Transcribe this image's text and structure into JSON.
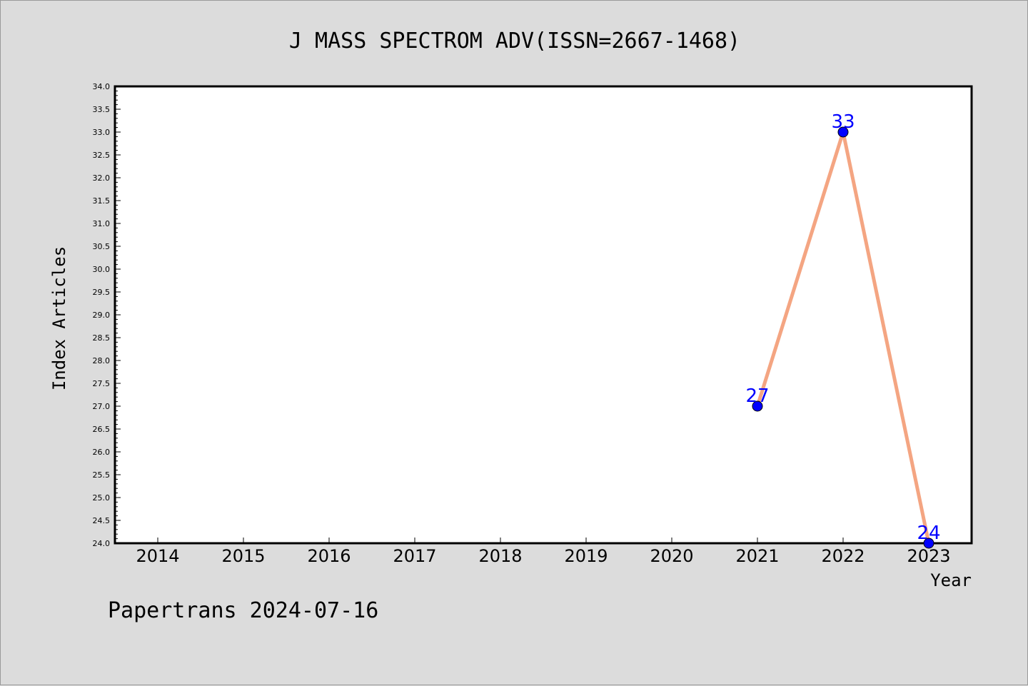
{
  "chart_data": {
    "type": "line",
    "title": "J MASS SPECTROM ADV(ISSN=2667-1468)",
    "xlabel": "Year",
    "ylabel": "Index Articles",
    "categories": [
      "2014",
      "2015",
      "2016",
      "2017",
      "2018",
      "2019",
      "2020",
      "2021",
      "2022",
      "2023"
    ],
    "series": [
      {
        "x": [
          "2021",
          "2022",
          "2023"
        ],
        "values": [
          27,
          33,
          24
        ],
        "labels": [
          "27",
          "33",
          "24"
        ]
      }
    ],
    "ylim": [
      24.0,
      34.0
    ],
    "yticks": [
      "24.0",
      "24.5",
      "25.0",
      "25.5",
      "26.0",
      "26.5",
      "27.0",
      "27.5",
      "28.0",
      "28.5",
      "29.0",
      "29.5",
      "30.0",
      "30.5",
      "31.0",
      "31.5",
      "32.0",
      "32.5",
      "33.0",
      "33.5",
      "34.0"
    ],
    "grid": false,
    "legend": "none",
    "colors": {
      "line": "#f4a582",
      "marker": "#0000ff",
      "data_label": "#0000ff",
      "plot_background": "#ffffff",
      "figure_background": "#dcdcdc"
    }
  },
  "footer": {
    "text": "Papertrans 2024-07-16"
  }
}
